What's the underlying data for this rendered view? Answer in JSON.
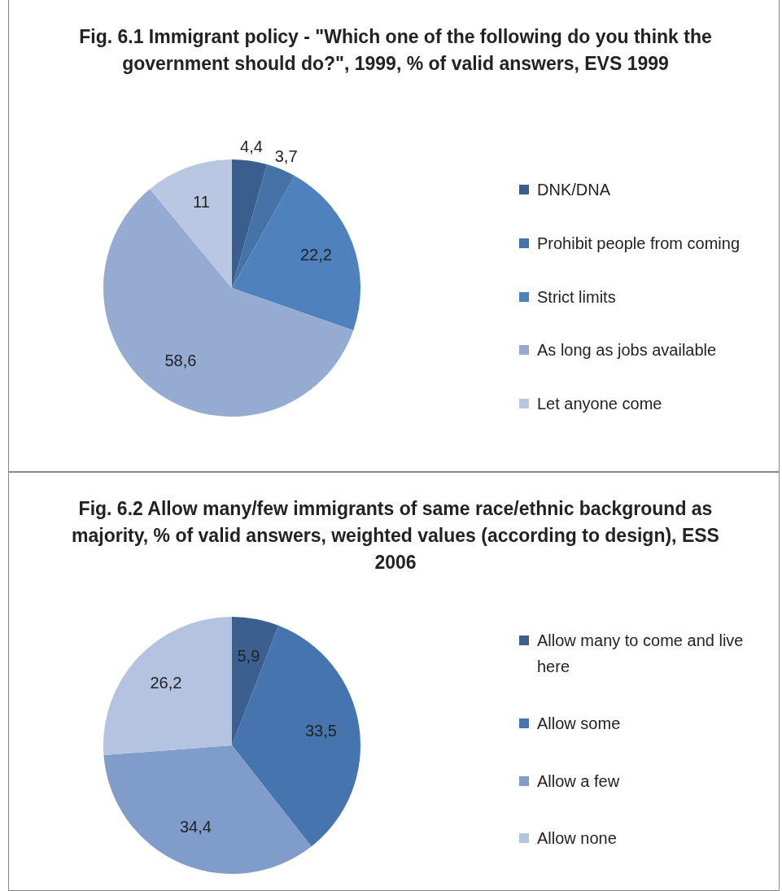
{
  "chart_data": [
    {
      "type": "pie",
      "title": "Fig. 6.1 Immigrant policy - \"Which one of the following do you think the government should do?\", 1999, % of valid answers, EVS 1999",
      "categories": [
        "DNK/DNA",
        "Prohibit people from coming",
        "Strict limits",
        "As long as jobs available",
        "Let anyone come"
      ],
      "values": [
        4.4,
        3.7,
        22.2,
        58.6,
        11
      ],
      "value_labels": [
        "4,4",
        "3,7",
        "22,2",
        "58,6",
        "11"
      ],
      "colors": [
        "#3a5f8f",
        "#4572a7",
        "#4f81bd",
        "#95abd2",
        "#b9c7e3"
      ],
      "legend": "right"
    },
    {
      "type": "pie",
      "title": "Fig. 6.2 Allow many/few immigrants of same race/ethnic background as majority, % of valid answers, weighted values (according to design), ESS 2006",
      "categories": [
        "Allow many to come and live here",
        "Allow some",
        "Allow a few",
        "Allow none"
      ],
      "values": [
        5.9,
        33.5,
        34.4,
        26.2
      ],
      "value_labels": [
        "5,9",
        "33,5",
        "34,4",
        "26,2"
      ],
      "colors": [
        "#3b5f8f",
        "#4674af",
        "#7f9ccb",
        "#b3c3e0"
      ],
      "legend": "right"
    }
  ]
}
